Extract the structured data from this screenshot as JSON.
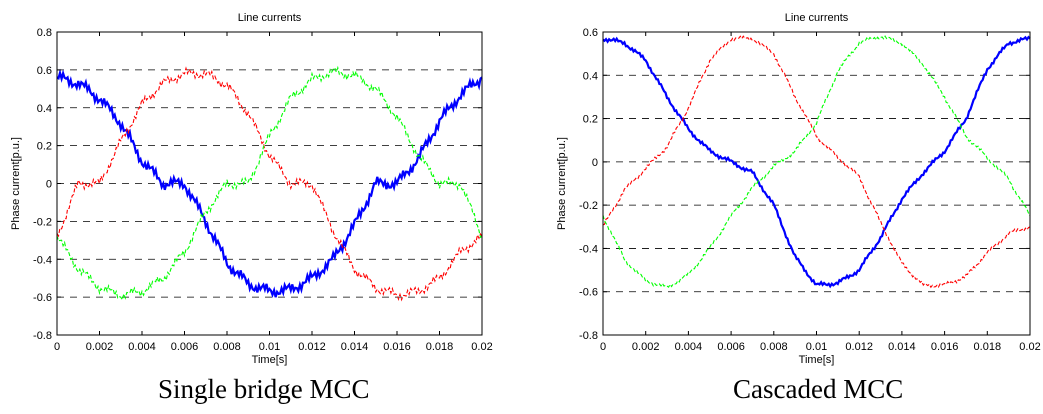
{
  "chart_data": [
    {
      "type": "line",
      "title": "Line currents",
      "xlabel": "Time[s]",
      "ylabel": "Phase current[p.u.]",
      "caption": "Single bridge MCC",
      "xlim": [
        0,
        0.02
      ],
      "ylim": [
        -0.8,
        0.8
      ],
      "xticks": [
        "0",
        "0.002",
        "0.004",
        "0.006",
        "0.008",
        "0.01",
        "0.012",
        "0.014",
        "0.016",
        "0.018",
        "0.02"
      ],
      "yticks": [
        "0.8",
        "0.6",
        "0.4",
        "0.2",
        "0",
        "-0.2",
        "-0.4",
        "-0.6",
        "-0.8"
      ],
      "grid": "dashed horizontal",
      "series": [
        {
          "color": "#0000ff",
          "style": "solid",
          "x": [
            0,
            0.001,
            0.002,
            0.003,
            0.004,
            0.005,
            0.006,
            0.007,
            0.008,
            0.009,
            0.01,
            0.011,
            0.012,
            0.013,
            0.014,
            0.015,
            0.016,
            0.017,
            0.018,
            0.019,
            0.02
          ],
          "y": [
            0.56,
            0.53,
            0.45,
            0.32,
            0.12,
            0.0,
            0.0,
            -0.2,
            -0.42,
            -0.53,
            -0.57,
            -0.56,
            -0.5,
            -0.4,
            -0.22,
            0.0,
            0.0,
            0.13,
            0.33,
            0.47,
            0.56
          ]
        },
        {
          "color": "#ff0000",
          "style": "dashed",
          "x": [
            0,
            0.001,
            0.002,
            0.003,
            0.004,
            0.005,
            0.006,
            0.007,
            0.008,
            0.009,
            0.01,
            0.011,
            0.012,
            0.013,
            0.014,
            0.015,
            0.016,
            0.017,
            0.018,
            0.019,
            0.02
          ],
          "y": [
            -0.28,
            0.0,
            0.0,
            0.22,
            0.42,
            0.53,
            0.58,
            0.58,
            0.52,
            0.37,
            0.15,
            0.0,
            0.0,
            -0.25,
            -0.45,
            -0.55,
            -0.59,
            -0.57,
            -0.5,
            -0.36,
            -0.28
          ]
        },
        {
          "color": "#00ff00",
          "style": "dashed",
          "x": [
            0,
            0.001,
            0.002,
            0.003,
            0.004,
            0.005,
            0.006,
            0.007,
            0.008,
            0.009,
            0.01,
            0.011,
            0.012,
            0.013,
            0.014,
            0.015,
            0.016,
            0.017,
            0.018,
            0.019,
            0.02
          ],
          "y": [
            -0.28,
            -0.45,
            -0.55,
            -0.59,
            -0.57,
            -0.5,
            -0.36,
            -0.15,
            0.0,
            0.0,
            0.25,
            0.45,
            0.55,
            0.59,
            0.57,
            0.5,
            0.35,
            0.15,
            0.0,
            0.0,
            -0.28
          ]
        }
      ]
    },
    {
      "type": "line",
      "title": "Line currents",
      "xlabel": "Time[s]",
      "ylabel": "Phase current[p.u.]",
      "caption": "Cascaded MCC",
      "xlim": [
        0,
        0.02
      ],
      "ylim": [
        -0.8,
        0.6
      ],
      "xticks": [
        "0",
        "0.002",
        "0.004",
        "0.006",
        "0.008",
        "0.01",
        "0.012",
        "0.014",
        "0.016",
        "0.018",
        "0.02"
      ],
      "yticks": [
        "0.6",
        "0.4",
        "0.2",
        "0",
        "-0.2",
        "-0.4",
        "-0.6",
        "-0.8"
      ],
      "grid": "dashed horizontal",
      "series": [
        {
          "color": "#0000ff",
          "style": "solid",
          "x": [
            0,
            0.001,
            0.002,
            0.003,
            0.004,
            0.005,
            0.006,
            0.007,
            0.008,
            0.009,
            0.01,
            0.011,
            0.012,
            0.013,
            0.014,
            0.015,
            0.016,
            0.017,
            0.018,
            0.019,
            0.02
          ],
          "y": [
            0.57,
            0.55,
            0.47,
            0.3,
            0.15,
            0.05,
            0.0,
            -0.05,
            -0.2,
            -0.44,
            -0.57,
            -0.56,
            -0.5,
            -0.35,
            -0.17,
            -0.05,
            0.05,
            0.2,
            0.43,
            0.55,
            0.57
          ]
        },
        {
          "color": "#ff0000",
          "style": "dashed",
          "x": [
            0,
            0.001,
            0.002,
            0.003,
            0.004,
            0.005,
            0.006,
            0.007,
            0.008,
            0.009,
            0.01,
            0.011,
            0.012,
            0.013,
            0.014,
            0.015,
            0.016,
            0.017,
            0.018,
            0.019,
            0.02
          ],
          "y": [
            -0.3,
            -0.13,
            -0.03,
            0.07,
            0.25,
            0.47,
            0.57,
            0.57,
            0.5,
            0.3,
            0.12,
            0.02,
            -0.07,
            -0.28,
            -0.47,
            -0.57,
            -0.57,
            -0.53,
            -0.42,
            -0.33,
            -0.3
          ]
        },
        {
          "color": "#00ff00",
          "style": "dashed",
          "x": [
            0,
            0.001,
            0.002,
            0.003,
            0.004,
            0.005,
            0.006,
            0.007,
            0.008,
            0.009,
            0.01,
            0.011,
            0.012,
            0.013,
            0.014,
            0.015,
            0.016,
            0.017,
            0.018,
            0.019,
            0.02
          ],
          "y": [
            -0.25,
            -0.45,
            -0.55,
            -0.58,
            -0.52,
            -0.4,
            -0.25,
            -0.12,
            -0.02,
            0.05,
            0.18,
            0.42,
            0.55,
            0.58,
            0.55,
            0.45,
            0.3,
            0.12,
            0.02,
            -0.08,
            -0.25
          ]
        }
      ]
    }
  ]
}
